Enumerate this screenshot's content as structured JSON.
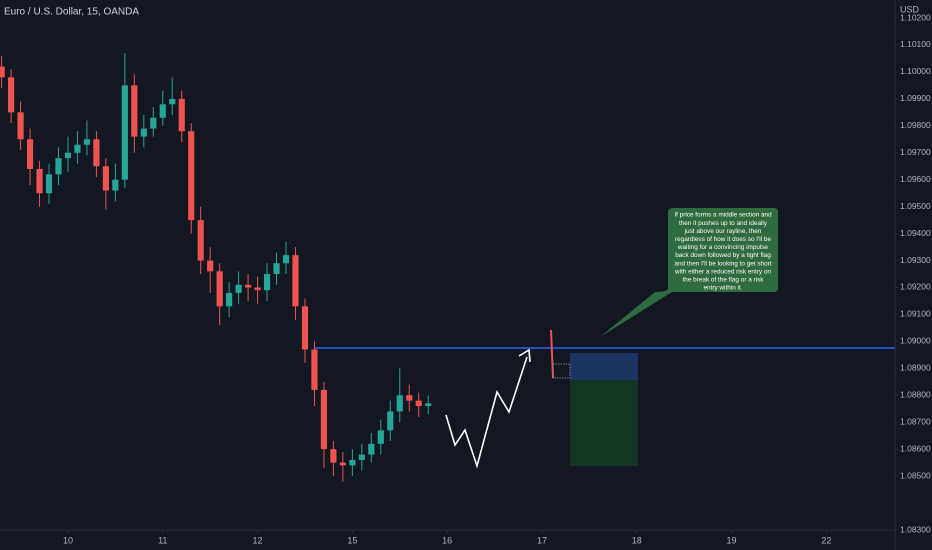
{
  "chart_data": {
    "type": "candlestick",
    "title": "Euro / U.S. Dollar, 15, OANDA",
    "currency_label": "USD",
    "x": [
      -0.7,
      -0.6,
      -0.5,
      -0.4,
      -0.3,
      -0.2,
      -0.1,
      0,
      0.1,
      0.2,
      0.3,
      0.4,
      0.5,
      0.6,
      0.7,
      0.8,
      0.9,
      1,
      1.1,
      1.2,
      1.3,
      1.4,
      1.5,
      1.6,
      1.7,
      1.8,
      1.9,
      2,
      2.1,
      2.2,
      2.3,
      2.4,
      2.5,
      2.6,
      2.7,
      2.8,
      2.9,
      3,
      3.1,
      3.2,
      3.3,
      3.4,
      3.5,
      3.6,
      3.7,
      3.8
    ],
    "open": [
      1.1002,
      1.0998,
      1.0985,
      1.0975,
      1.0964,
      1.0955,
      1.0962,
      1.0968,
      1.097,
      1.0973,
      1.0975,
      1.0965,
      1.0956,
      1.096,
      1.0995,
      1.0976,
      1.0979,
      1.0983,
      1.0988,
      1.099,
      1.0978,
      1.0945,
      1.093,
      1.0926,
      1.0913,
      1.0918,
      1.0921,
      1.092,
      1.0919,
      1.0925,
      1.0929,
      1.0932,
      1.0913,
      1.0897,
      1.0882,
      1.086,
      1.0855,
      1.0854,
      1.0856,
      1.0858,
      1.0862,
      1.0867,
      1.0874,
      1.088,
      1.0878,
      1.0876
    ],
    "high": [
      1.1006,
      1.1001,
      1.0989,
      1.0979,
      1.0967,
      1.0966,
      1.0972,
      1.0976,
      1.0978,
      1.0982,
      1.0978,
      1.0968,
      1.0966,
      1.1007,
      1.0999,
      1.0984,
      1.0987,
      1.0993,
      1.0998,
      1.0993,
      1.0981,
      1.095,
      1.0935,
      1.0929,
      1.0922,
      1.0926,
      1.0925,
      1.0924,
      1.0929,
      1.0933,
      1.0937,
      1.0935,
      1.0916,
      1.09,
      1.0885,
      1.0863,
      1.0859,
      1.086,
      1.0862,
      1.0866,
      1.0871,
      1.0878,
      1.089,
      1.0884,
      1.0881,
      1.088
    ],
    "low": [
      1.0994,
      1.0981,
      1.0971,
      1.0958,
      1.095,
      1.0951,
      1.0958,
      1.0963,
      1.0966,
      1.0969,
      1.0961,
      1.0949,
      1.0952,
      1.0957,
      1.097,
      1.0972,
      1.0976,
      1.098,
      1.0984,
      1.0974,
      1.094,
      1.0925,
      1.0918,
      1.0906,
      1.0909,
      1.0914,
      1.0915,
      1.0914,
      1.0915,
      1.0921,
      1.0925,
      1.0908,
      1.0892,
      1.0876,
      1.0853,
      1.085,
      1.0848,
      1.085,
      1.0852,
      1.0855,
      1.0858,
      1.0863,
      1.087,
      1.0874,
      1.0872,
      1.0873
    ],
    "close": [
      1.0998,
      1.0985,
      1.0975,
      1.0964,
      1.0955,
      1.0962,
      1.0968,
      1.097,
      1.0973,
      1.0975,
      1.0965,
      1.0956,
      1.096,
      1.0995,
      1.0976,
      1.0979,
      1.0983,
      1.0988,
      1.099,
      1.0978,
      1.0945,
      1.093,
      1.0926,
      1.0913,
      1.0918,
      1.0921,
      1.092,
      1.0919,
      1.0925,
      1.0929,
      1.0932,
      1.0913,
      1.0897,
      1.0882,
      1.086,
      1.0855,
      1.0854,
      1.0856,
      1.0858,
      1.0862,
      1.0867,
      1.0874,
      1.088,
      1.0878,
      1.0876,
      1.0877
    ],
    "up_color": "#26a69a",
    "down_color": "#ef5350",
    "xlim": [
      -0.717,
      8.724
    ],
    "xticks": [
      {
        "value": 0,
        "label": "10"
      },
      {
        "value": 1,
        "label": "11"
      },
      {
        "value": 2,
        "label": "12"
      },
      {
        "value": 3,
        "label": "15"
      },
      {
        "value": 4,
        "label": "16"
      },
      {
        "value": 5,
        "label": "17"
      },
      {
        "value": 6,
        "label": "18"
      },
      {
        "value": 7,
        "label": "19"
      },
      {
        "value": 8,
        "label": "22"
      }
    ],
    "ylim": [
      1.083,
      1.10267
    ],
    "yticks": [
      {
        "value": 1.083,
        "label": "1.08300"
      },
      {
        "value": 1.085,
        "label": "1.08500"
      },
      {
        "value": 1.086,
        "label": "1.08600"
      },
      {
        "value": 1.087,
        "label": "1.08700"
      },
      {
        "value": 1.088,
        "label": "1.08800"
      },
      {
        "value": 1.089,
        "label": "1.08900"
      },
      {
        "value": 1.09,
        "label": "1.09000"
      },
      {
        "value": 1.091,
        "label": "1.09100"
      },
      {
        "value": 1.092,
        "label": "1.09200"
      },
      {
        "value": 1.093,
        "label": "1.09300"
      },
      {
        "value": 1.094,
        "label": "1.09400"
      },
      {
        "value": 1.095,
        "label": "1.09500"
      },
      {
        "value": 1.096,
        "label": "1.09600"
      },
      {
        "value": 1.097,
        "label": "1.09700"
      },
      {
        "value": 1.098,
        "label": "1.09800"
      },
      {
        "value": 1.099,
        "label": "1.09900"
      },
      {
        "value": 1.1,
        "label": "1.10000"
      },
      {
        "value": 1.101,
        "label": "1.10100"
      },
      {
        "value": 1.102,
        "label": "1.10200"
      }
    ],
    "grid": false,
    "annotation": [
      "If price forms a middle section and",
      "then it pushes up to and ideally",
      "just above our rayline, then",
      "regardless of how it does so I'll be",
      "waiting for a convincing impulse",
      "back down followed by a tight flag",
      "and then I'll be looking to get short",
      "with either a reduced risk entry on",
      "the break of the flag or a risk",
      "entry within it."
    ]
  }
}
